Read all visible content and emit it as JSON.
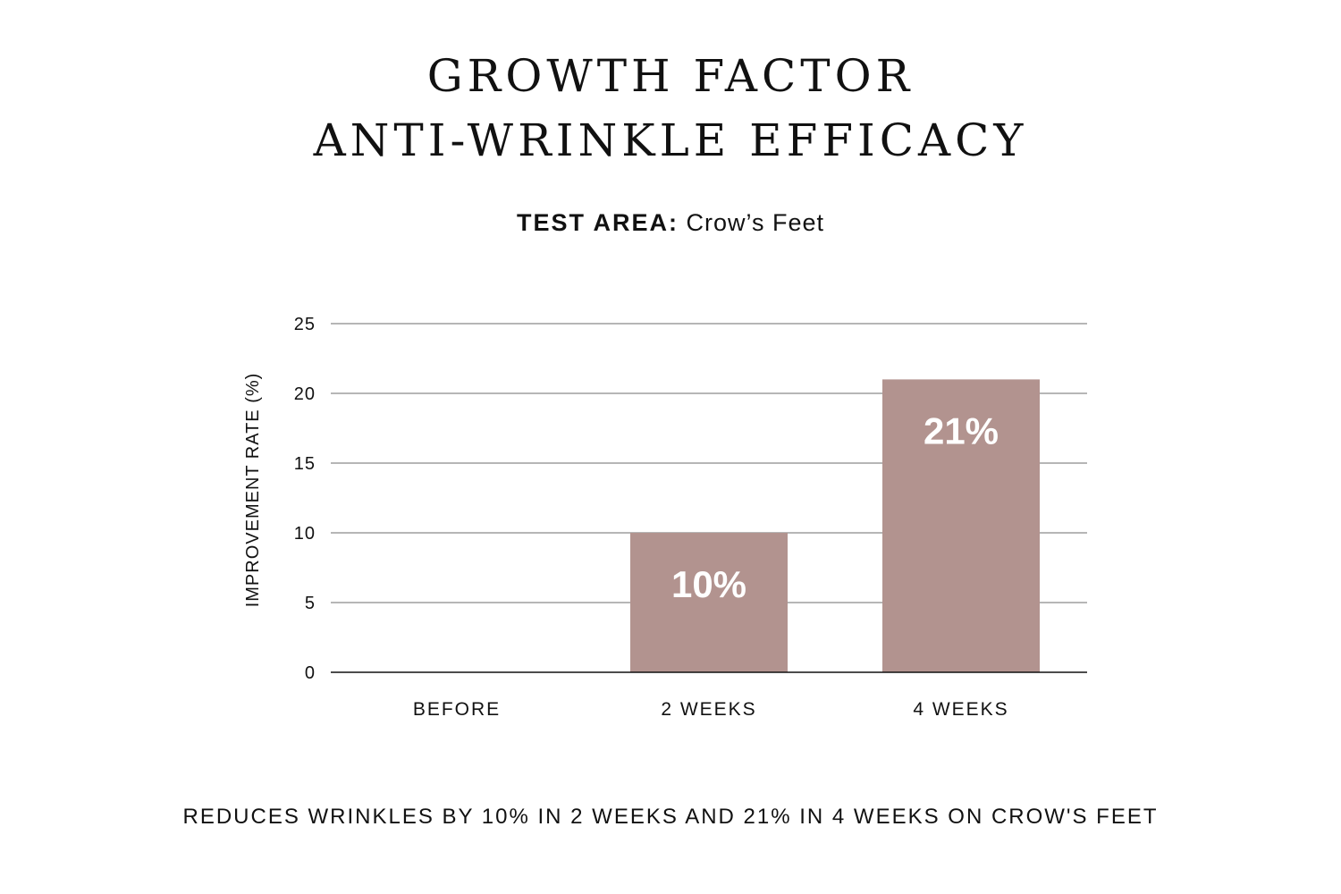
{
  "title": {
    "line1": "GROWTH FACTOR",
    "line2": "ANTI-WRINKLE EFFICACY"
  },
  "subtitle": {
    "label": "TEST AREA:",
    "value": "Crow’s Feet"
  },
  "chart_data": {
    "type": "bar",
    "categories": [
      "BEFORE",
      "2 WEEKS",
      "4 WEEKS"
    ],
    "values": [
      0,
      10,
      21
    ],
    "data_labels": [
      "",
      "10%",
      "21%"
    ],
    "ylabel": "IMPROVEMENT RATE (%)",
    "xlabel": "",
    "ylim": [
      0,
      25
    ],
    "yticks": [
      0,
      5,
      10,
      15,
      20,
      25
    ],
    "grid": true,
    "bar_color": "#b2938f",
    "data_label_color": "#ffffff"
  },
  "footnote": "REDUCES WRINKLES BY 10% IN 2 WEEKS AND 21% IN 4 WEEKS ON CROW'S FEET"
}
